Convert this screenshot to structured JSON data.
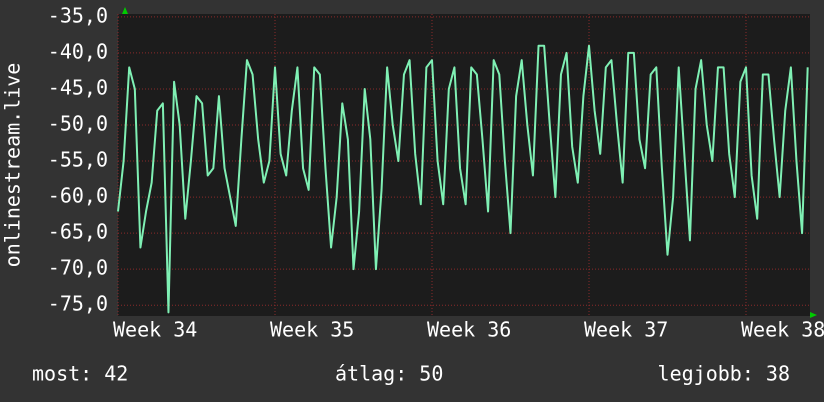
{
  "chart_data": {
    "type": "line",
    "y_label": "onlinestream.live",
    "categories": [
      "Week 34",
      null,
      null,
      null,
      null,
      null,
      null,
      null,
      null,
      null,
      null,
      null,
      null,
      null,
      null,
      null,
      null,
      null,
      null,
      null,
      null,
      null,
      null,
      null,
      null,
      null,
      null,
      null,
      "Week 35",
      null,
      null,
      null,
      null,
      null,
      null,
      null,
      null,
      null,
      null,
      null,
      null,
      null,
      null,
      null,
      null,
      null,
      null,
      null,
      null,
      null,
      null,
      null,
      null,
      null,
      null,
      null,
      "Week 36",
      null,
      null,
      null,
      null,
      null,
      null,
      null,
      null,
      null,
      null,
      null,
      null,
      null,
      null,
      null,
      null,
      null,
      null,
      null,
      null,
      null,
      null,
      null,
      null,
      null,
      null,
      null,
      "Week 37",
      null,
      null,
      null,
      null,
      null,
      null,
      null,
      null,
      null,
      null,
      null,
      null,
      null,
      null,
      null,
      null,
      null,
      null,
      null,
      null,
      null,
      null,
      null,
      null,
      null,
      null,
      null,
      "Week 38",
      null,
      null,
      null,
      null,
      null,
      null,
      null,
      null,
      null,
      null,
      null
    ],
    "series": [
      {
        "name": "onlinestream.live",
        "color": "#7ff0b4",
        "values": [
          -62,
          -55,
          -42,
          -45,
          -67,
          -62,
          -58,
          -48,
          -47,
          -76,
          -44,
          -50,
          -63,
          -55,
          -46,
          -47,
          -57,
          -56,
          -46,
          -56,
          -60,
          -64,
          -52,
          -41,
          -43,
          -52,
          -58,
          -55,
          -42,
          -54,
          -57,
          -48,
          -42,
          -56,
          -59,
          -42,
          -43,
          -56,
          -67,
          -60,
          -47,
          -52,
          -70,
          -62,
          -45,
          -52,
          -70,
          -59,
          -42,
          -50,
          -55,
          -43,
          -41,
          -54,
          -61,
          -42,
          -41,
          -55,
          -61,
          -45,
          -42,
          -56,
          -61,
          -42,
          -43,
          -52,
          -62,
          -41,
          -43,
          -55,
          -65,
          -46,
          -41,
          -50,
          -57,
          -39,
          -39,
          -50,
          -60,
          -43,
          -40,
          -53,
          -58,
          -46,
          -39,
          -48,
          -54,
          -42,
          -41,
          -50,
          -58,
          -40,
          -40,
          -52,
          -56,
          -43,
          -42,
          -56,
          -68,
          -60,
          -42,
          -54,
          -66,
          -45,
          -41,
          -50,
          -55,
          -42,
          -42,
          -54,
          -60,
          -44,
          -42,
          -57,
          -63,
          -43,
          -43,
          -52,
          -60,
          -48,
          -42,
          -55,
          -65,
          -42
        ]
      }
    ],
    "ylim": [
      -76.5,
      -34.6
    ],
    "yticks": [
      {
        "value": -35,
        "label": "-35,0"
      },
      {
        "value": -40,
        "label": "-40,0"
      },
      {
        "value": -45,
        "label": "-45,0"
      },
      {
        "value": -50,
        "label": "-50,0"
      },
      {
        "value": -55,
        "label": "-55,0"
      },
      {
        "value": -60,
        "label": "-60,0"
      },
      {
        "value": -65,
        "label": "-65,0"
      },
      {
        "value": -70,
        "label": "-70,0"
      },
      {
        "value": -75,
        "label": "-75,0"
      }
    ],
    "grid": true,
    "stats": [
      "most: 42",
      "átlag: 50",
      "legjobb: 38"
    ]
  }
}
